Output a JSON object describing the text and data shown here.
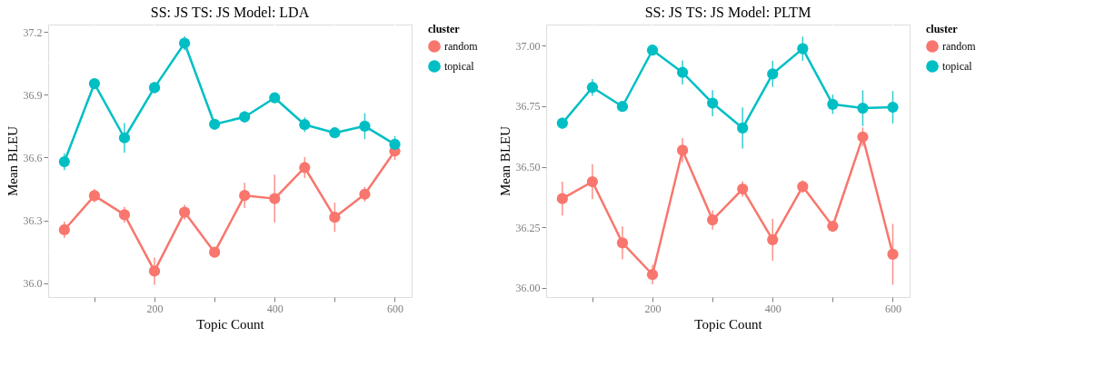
{
  "chart_data": [
    {
      "type": "line",
      "title": "SS: JS     TS: JS     Model: LDA",
      "xlabel": "Topic Count",
      "ylabel": "Mean BLEU",
      "legend_title": "cluster",
      "legend": "right",
      "grid": true,
      "marker": "circle",
      "x": [
        50,
        100,
        150,
        200,
        250,
        300,
        350,
        400,
        450,
        500,
        550,
        600
      ],
      "xlim": [
        23,
        628
      ],
      "xticks": [
        {
          "value": 100,
          "label": null
        },
        200,
        {
          "value": 300,
          "label": null
        },
        400,
        {
          "value": 500,
          "label": null
        },
        600
      ],
      "ylim": [
        35.934,
        37.235
      ],
      "yticks": [
        {
          "value": 36,
          "label": "36.0"
        },
        {
          "value": 36.15,
          "label": null
        },
        36.3,
        {
          "value": 36.45,
          "label": null
        },
        36.6,
        {
          "value": 36.75,
          "label": null
        },
        36.9,
        {
          "value": 37.05,
          "label": null
        },
        37.2
      ],
      "series": [
        {
          "name": "random",
          "color": "#f8766d",
          "values": [
            36.255,
            36.418,
            36.327,
            36.058,
            36.339,
            36.148,
            36.419,
            36.404,
            36.552,
            36.315,
            36.425,
            36.631
          ],
          "errors": [
            0.039,
            0.032,
            0.037,
            0.065,
            0.035,
            0.025,
            0.06,
            0.114,
            0.05,
            0.07,
            0.035,
            0.042
          ]
        },
        {
          "name": "topical",
          "color": "#00bfc4",
          "values": [
            36.58,
            36.953,
            36.694,
            36.934,
            37.146,
            36.759,
            36.794,
            36.885,
            36.757,
            36.718,
            36.75,
            36.663
          ],
          "errors": [
            0.04,
            0.023,
            0.07,
            0.027,
            0.033,
            0.017,
            0.028,
            0.022,
            0.035,
            0.022,
            0.062,
            0.04
          ]
        }
      ]
    },
    {
      "type": "line",
      "title": "SS: JS     TS: JS     Model: PLTM",
      "xlabel": "Topic Count",
      "ylabel": "Mean BLEU",
      "legend_title": "cluster",
      "legend": "right",
      "grid": true,
      "marker": "circle",
      "x": [
        50,
        100,
        150,
        200,
        250,
        300,
        350,
        400,
        450,
        500,
        550,
        600
      ],
      "xlim": [
        23,
        628
      ],
      "xticks": [
        {
          "value": 100,
          "label": null
        },
        200,
        {
          "value": 300,
          "label": null
        },
        400,
        {
          "value": 500,
          "label": null
        },
        600
      ],
      "ylim": [
        35.961,
        37.088
      ],
      "yticks": [
        {
          "value": 36,
          "label": "36.00"
        },
        {
          "value": 36.125,
          "label": null
        },
        36.25,
        {
          "value": 36.375,
          "label": null
        },
        {
          "value": 36.5,
          "label": "36.50"
        },
        {
          "value": 36.625,
          "label": null
        },
        36.75,
        {
          "value": 36.875,
          "label": null
        },
        {
          "value": 37,
          "label": "37.00"
        }
      ],
      "series": [
        {
          "name": "random",
          "color": "#f8766d",
          "values": [
            36.368,
            36.438,
            36.185,
            36.054,
            36.568,
            36.28,
            36.408,
            36.198,
            36.418,
            36.254,
            36.623,
            36.138
          ],
          "errors": [
            0.07,
            0.072,
            0.068,
            0.04,
            0.05,
            0.04,
            0.032,
            0.087,
            0.026,
            0.023,
            0.039,
            0.126
          ]
        },
        {
          "name": "topical",
          "color": "#00bfc4",
          "values": [
            36.68,
            36.828,
            36.749,
            36.982,
            36.89,
            36.763,
            36.66,
            36.884,
            36.988,
            36.758,
            36.742,
            36.746
          ],
          "errors": [
            0.023,
            0.035,
            0.02,
            0.015,
            0.05,
            0.054,
            0.085,
            0.054,
            0.05,
            0.04,
            0.074,
            0.067
          ]
        }
      ]
    }
  ]
}
